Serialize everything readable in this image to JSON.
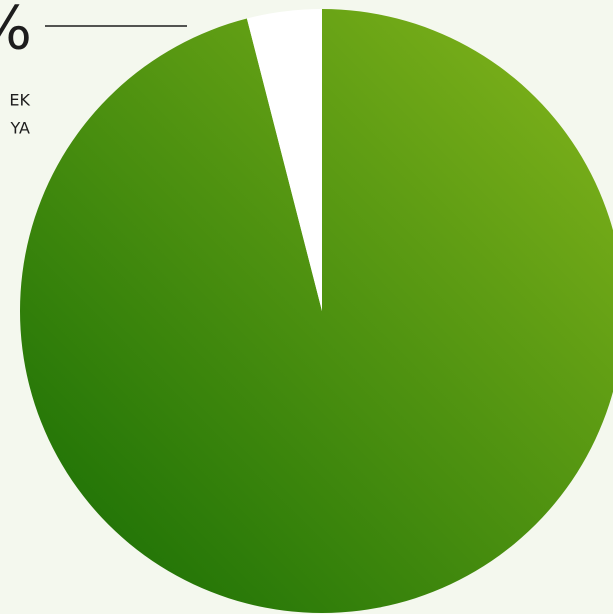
{
  "chart_data": {
    "type": "pie",
    "values": [
      96,
      4
    ],
    "colors": [
      [
        "#86b71c",
        "#146b04"
      ],
      "#ffffff"
    ],
    "start_angle": 0,
    "direction": "clockwise",
    "annotations": [
      "%",
      "EK",
      "YA"
    ]
  }
}
